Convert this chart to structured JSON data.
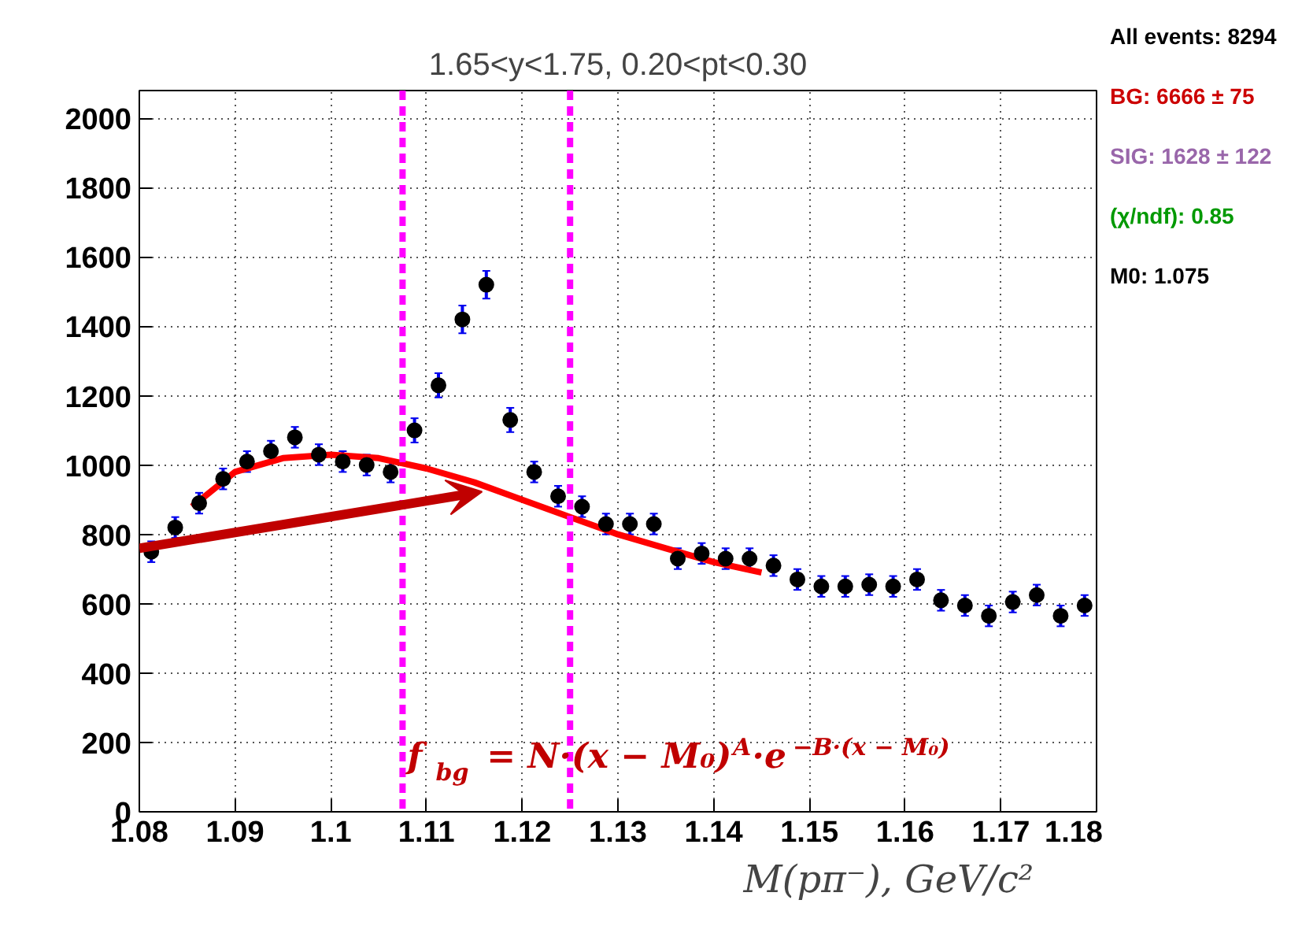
{
  "chart_data": {
    "type": "scatter",
    "title": "1.65<y<1.75, 0.20<pt<0.30",
    "xlabel": "M(pπ⁻), GeV/c²",
    "xlim": [
      1.08,
      1.18
    ],
    "ylim": [
      0,
      2080
    ],
    "xticks": [
      1.08,
      1.09,
      1.1,
      1.11,
      1.12,
      1.13,
      1.14,
      1.15,
      1.16,
      1.17,
      1.18
    ],
    "yticks": [
      0,
      200,
      400,
      600,
      800,
      1000,
      1200,
      1400,
      1600,
      1800,
      2000
    ],
    "grid": true,
    "marker": "circle",
    "series": [
      {
        "color": "#000000",
        "x": [
          1.08125,
          1.08375,
          1.08625,
          1.08875,
          1.09125,
          1.09375,
          1.09625,
          1.09875,
          1.10125,
          1.10375,
          1.10625,
          1.10875,
          1.11125,
          1.11375,
          1.11625,
          1.11875,
          1.12125,
          1.12375,
          1.12625,
          1.12875,
          1.13125,
          1.13375,
          1.13625,
          1.13875,
          1.14125,
          1.14375,
          1.14625,
          1.14875,
          1.15125,
          1.15375,
          1.15625,
          1.15875,
          1.16125,
          1.16375,
          1.16625,
          1.16875,
          1.17125,
          1.17375,
          1.17625,
          1.17875
        ],
        "values": [
          750,
          820,
          890,
          960,
          1010,
          1040,
          1080,
          1030,
          1010,
          1000,
          980,
          1100,
          1230,
          1420,
          1520,
          1130,
          980,
          910,
          880,
          830,
          830,
          830,
          730,
          745,
          730,
          730,
          710,
          670,
          650,
          650,
          655,
          650,
          670,
          610,
          595,
          565,
          605,
          625,
          565,
          595
        ],
        "errors": [
          30,
          30,
          30,
          30,
          30,
          30,
          30,
          30,
          30,
          30,
          30,
          35,
          35,
          40,
          40,
          35,
          30,
          30,
          30,
          30,
          30,
          30,
          30,
          30,
          30,
          30,
          30,
          30,
          30,
          30,
          30,
          30,
          30,
          30,
          30,
          30,
          30,
          30,
          30,
          30
        ]
      },
      {
        "type": "line",
        "color": "#ff0000",
        "line_style": "solid",
        "marker": "none",
        "x": [
          1.0855,
          1.09,
          1.095,
          1.1,
          1.105,
          1.11,
          1.115,
          1.12,
          1.125,
          1.13,
          1.135,
          1.14,
          1.145
        ],
        "values": [
          880,
          980,
          1020,
          1030,
          1020,
          990,
          950,
          900,
          850,
          800,
          760,
          720,
          690
        ]
      }
    ],
    "ref_lines": [
      {
        "axis": "x",
        "value": 1.1075,
        "color": "#ff00ff",
        "line_style": "dashed"
      },
      {
        "axis": "x",
        "value": 1.125,
        "color": "#ff00ff",
        "line_style": "dashed"
      }
    ],
    "annotations": [
      "All events: 8294",
      "BG: 6666 ± 75",
      "SIG: 1628 ± 122",
      "(χ/ndf): 0.85",
      "M0: 1.075",
      {
        "text": "f$_{bg}$ = N·(x − M₀)$^{A}$·e$^{−B·(x − M₀)}$",
        "x": 1.108,
        "y": 100
      }
    ]
  }
}
